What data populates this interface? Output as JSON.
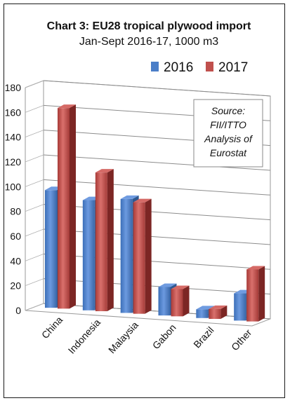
{
  "chart_data": {
    "type": "bar",
    "title": "Chart 3: EU28 tropical plywood import",
    "subtitle": "Jan-Sept 2016-17, 1000 m3",
    "categories": [
      "China",
      "Indonesia",
      "Malaysia",
      "Gabon",
      "Brazil",
      "Other"
    ],
    "series": [
      {
        "name": "2016",
        "color": "#4a7ec8",
        "values": [
          95,
          89,
          92,
          23,
          7,
          22
        ]
      },
      {
        "name": "2017",
        "color": "#c0504d",
        "values": [
          162,
          112,
          90,
          22,
          8,
          42
        ]
      }
    ],
    "ylim": [
      0,
      180
    ],
    "yticks": [
      "0",
      "20",
      "40",
      "60",
      "80",
      "100",
      "120",
      "140",
      "160",
      "180"
    ],
    "grid": true,
    "legend": "top-right",
    "annotation": [
      "Source:",
      "FII/ITTO",
      "Analysis of",
      "Eurostat"
    ]
  }
}
